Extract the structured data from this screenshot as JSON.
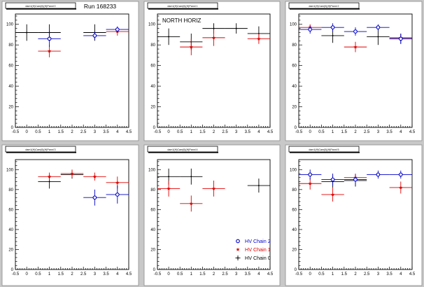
{
  "run_label": "Run 168233",
  "colors": {
    "chain0": "#000000",
    "chain1": "#e00000",
    "chain2": "#0000c8",
    "canvas": "#c8c8c8",
    "pad": "#ffffff"
  },
  "legend": {
    "placement": "bottom-right of panel 5",
    "entries": [
      {
        "label": "HV Chain 2",
        "color": "#0000c8",
        "marker": "open-circle"
      },
      {
        "label": "HV Chain 1",
        "color": "#e00000",
        "marker": "star"
      },
      {
        "label": "HV Chain 0",
        "color": "#000000",
        "marker": "cross"
      }
    ]
  },
  "chart_data": [
    {
      "type": "scatter",
      "panel_title": "dam1(H)Cam(0)(H)Pannl 0",
      "annotation": "",
      "xlim": [
        -0.5,
        4.5
      ],
      "ylim": [
        0,
        110
      ],
      "xticks": [
        "-0.5",
        "0",
        "0.5",
        "1",
        "1.5",
        "2",
        "2.5",
        "3",
        "3.5",
        "4",
        "4.5"
      ],
      "yticks": [
        "0",
        "20",
        "40",
        "60",
        "80",
        "100"
      ],
      "series": [
        {
          "name": "HV Chain 0",
          "points": [
            {
              "x": 0,
              "y": 92,
              "err": 8
            },
            {
              "x": 1,
              "y": 92,
              "err": 8
            },
            {
              "x": 3,
              "y": 92,
              "err": 8
            }
          ]
        },
        {
          "name": "HV Chain 1",
          "points": [
            {
              "x": 1,
              "y": 74,
              "err": 6
            },
            {
              "x": 4,
              "y": 93,
              "err": 4
            }
          ]
        },
        {
          "name": "HV Chain 2",
          "points": [
            {
              "x": 1,
              "y": 86,
              "err": 8
            },
            {
              "x": 3,
              "y": 89,
              "err": 4
            },
            {
              "x": 4,
              "y": 95,
              "err": 3
            }
          ]
        }
      ]
    },
    {
      "type": "scatter",
      "panel_title": "dam1(H)Cam(0)(H)Pannl 1",
      "annotation": "NORTH HORIZ",
      "xlim": [
        -0.5,
        4.5
      ],
      "ylim": [
        0,
        110
      ],
      "xticks": [
        "-0.5",
        "0",
        "0.5",
        "1",
        "1.5",
        "2",
        "2.5",
        "3",
        "3.5",
        "4",
        "4.5"
      ],
      "yticks": [
        "0",
        "20",
        "40",
        "60",
        "80",
        "100"
      ],
      "series": [
        {
          "name": "HV Chain 0",
          "points": [
            {
              "x": 0,
              "y": 88,
              "err": 8
            },
            {
              "x": 1,
              "y": 83,
              "err": 8
            },
            {
              "x": 2,
              "y": 96,
              "err": 5
            },
            {
              "x": 3,
              "y": 96,
              "err": 5
            },
            {
              "x": 4,
              "y": 91,
              "err": 7
            }
          ]
        },
        {
          "name": "HV Chain 1",
          "points": [
            {
              "x": 1,
              "y": 78,
              "err": 8
            },
            {
              "x": 2,
              "y": 87,
              "err": 8
            },
            {
              "x": 4,
              "y": 86,
              "err": 5
            }
          ]
        },
        {
          "name": "HV Chain 2",
          "points": []
        }
      ]
    },
    {
      "type": "scatter",
      "panel_title": "dam1(H)Cam(0)(H)Pannl 2",
      "annotation": "",
      "xlim": [
        -0.5,
        4.5
      ],
      "ylim": [
        0,
        110
      ],
      "xticks": [
        "-0.5",
        "0",
        "0.5",
        "1",
        "1.5",
        "2",
        "2.5",
        "3",
        "3.5",
        "4",
        "4.5"
      ],
      "yticks": [
        "0",
        "20",
        "40",
        "60",
        "80",
        "100"
      ],
      "series": [
        {
          "name": "HV Chain 0",
          "points": [
            {
              "x": 1,
              "y": 89,
              "err": 7
            },
            {
              "x": 3,
              "y": 88,
              "err": 8
            },
            {
              "x": 4,
              "y": 86,
              "err": 5
            }
          ]
        },
        {
          "name": "HV Chain 1",
          "points": [
            {
              "x": 0,
              "y": 97,
              "err": 3
            },
            {
              "x": 2,
              "y": 78,
              "err": 5
            },
            {
              "x": 4,
              "y": 87,
              "err": 3
            }
          ]
        },
        {
          "name": "HV Chain 2",
          "points": [
            {
              "x": 0,
              "y": 95,
              "err": 4
            },
            {
              "x": 1,
              "y": 97,
              "err": 4
            },
            {
              "x": 2,
              "y": 93,
              "err": 4
            },
            {
              "x": 3,
              "y": 97,
              "err": 3
            },
            {
              "x": 4,
              "y": 86,
              "err": 5
            }
          ]
        }
      ]
    },
    {
      "type": "scatter",
      "panel_title": "dam1(H)Cam(0)(H)Pannl 3",
      "annotation": "",
      "xlim": [
        -0.5,
        4.5
      ],
      "ylim": [
        0,
        110
      ],
      "xticks": [
        "-0.5",
        "0",
        "0.5",
        "1",
        "1.5",
        "2",
        "2.5",
        "3",
        "3.5",
        "4",
        "4.5"
      ],
      "yticks": [
        "0",
        "20",
        "40",
        "60",
        "80",
        "100"
      ],
      "series": [
        {
          "name": "HV Chain 0",
          "points": [
            {
              "x": 1,
              "y": 88,
              "err": 7
            },
            {
              "x": 2,
              "y": 95,
              "err": 4
            }
          ]
        },
        {
          "name": "HV Chain 1",
          "points": [
            {
              "x": 1,
              "y": 93,
              "err": 4
            },
            {
              "x": 2,
              "y": 96,
              "err": 4
            },
            {
              "x": 3,
              "y": 93,
              "err": 4
            },
            {
              "x": 4,
              "y": 87,
              "err": 6
            }
          ]
        },
        {
          "name": "HV Chain 2",
          "points": [
            {
              "x": 3,
              "y": 72,
              "err": 8
            },
            {
              "x": 4,
              "y": 75,
              "err": 9
            }
          ]
        }
      ]
    },
    {
      "type": "scatter",
      "panel_title": "dam1(H)Cam(0)(H)Pannl 4",
      "annotation": "",
      "xlim": [
        -0.5,
        4.5
      ],
      "ylim": [
        0,
        110
      ],
      "xticks": [
        "-0.5",
        "0",
        "0.5",
        "1",
        "1.5",
        "2",
        "2.5",
        "3",
        "3.5",
        "4",
        "4.5"
      ],
      "yticks": [
        "0",
        "20",
        "40",
        "60",
        "80",
        "100"
      ],
      "series": [
        {
          "name": "HV Chain 0",
          "points": [
            {
              "x": 0,
              "y": 93,
              "err": 8
            },
            {
              "x": 1,
              "y": 93,
              "err": 8
            },
            {
              "x": 4,
              "y": 84,
              "err": 7
            }
          ]
        },
        {
          "name": "HV Chain 1",
          "points": [
            {
              "x": 0,
              "y": 81,
              "err": 8
            },
            {
              "x": 1,
              "y": 66,
              "err": 8
            },
            {
              "x": 2,
              "y": 81,
              "err": 8
            }
          ]
        },
        {
          "name": "HV Chain 2",
          "points": []
        }
      ]
    },
    {
      "type": "scatter",
      "panel_title": "dam1(H)Cam(0)(H)Pannl 5",
      "annotation": "",
      "xlim": [
        -0.5,
        4.5
      ],
      "ylim": [
        0,
        110
      ],
      "xticks": [
        "-0.5",
        "0",
        "0.5",
        "1",
        "1.5",
        "2",
        "2.5",
        "3",
        "3.5",
        "4",
        "4.5"
      ],
      "yticks": [
        "0",
        "20",
        "40",
        "60",
        "80",
        "100"
      ],
      "series": [
        {
          "name": "HV Chain 0",
          "points": [
            {
              "x": 1,
              "y": 88,
              "err": 6
            },
            {
              "x": 2,
              "y": 89,
              "err": 6
            }
          ]
        },
        {
          "name": "HV Chain 1",
          "points": [
            {
              "x": 0,
              "y": 86,
              "err": 6
            },
            {
              "x": 1,
              "y": 75,
              "err": 7
            },
            {
              "x": 2,
              "y": 92,
              "err": 4
            },
            {
              "x": 4,
              "y": 82,
              "err": 6
            }
          ]
        },
        {
          "name": "HV Chain 2",
          "points": [
            {
              "x": 0,
              "y": 95,
              "err": 5
            },
            {
              "x": 1,
              "y": 90,
              "err": 6
            },
            {
              "x": 2,
              "y": 90,
              "err": 5
            },
            {
              "x": 3,
              "y": 95,
              "err": 4
            },
            {
              "x": 4,
              "y": 95,
              "err": 4
            }
          ]
        }
      ]
    }
  ]
}
